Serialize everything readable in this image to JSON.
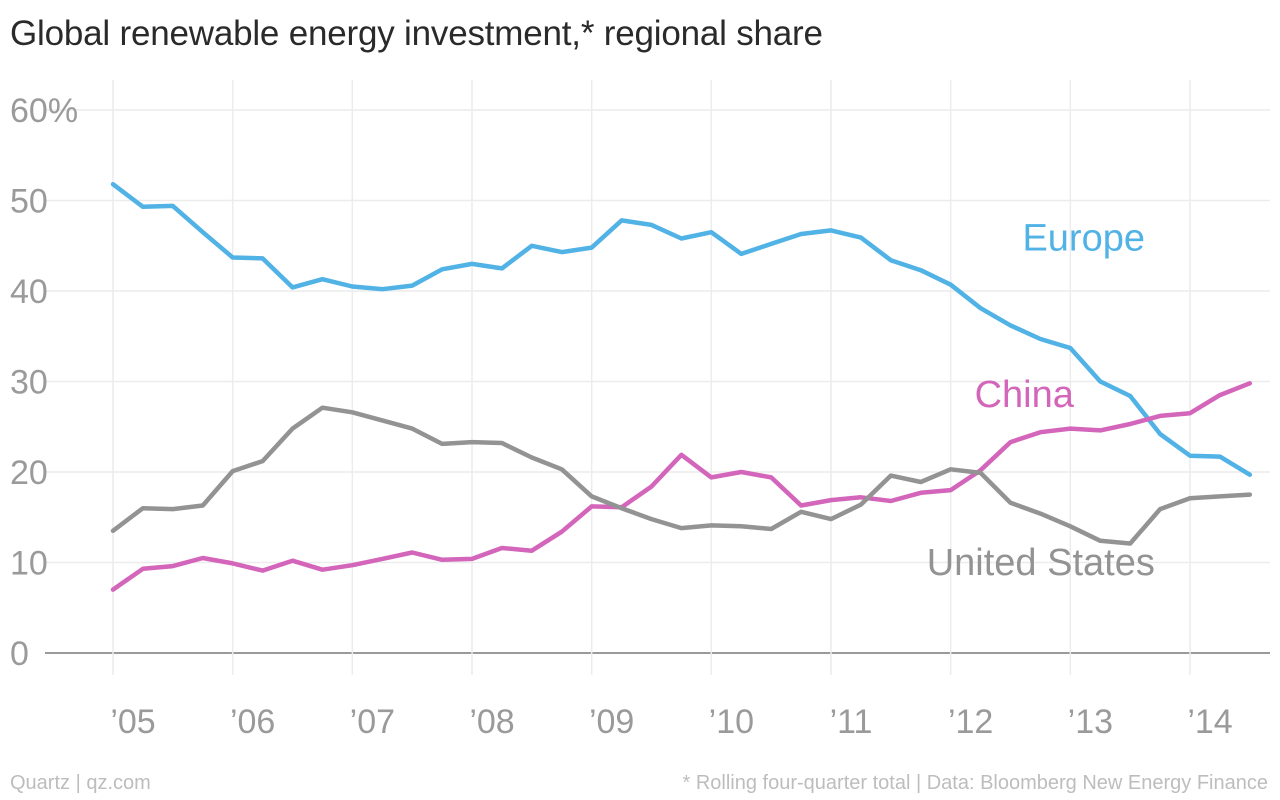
{
  "title": "Global renewable energy investment,* regional share",
  "footer": {
    "source_left": "Quartz | qz.com",
    "note_right": "* Rolling four-quarter total | Data: Bloomberg New Energy Finance"
  },
  "chart_data": {
    "type": "line",
    "title": "Global renewable energy investment,* regional share",
    "xlabel": "",
    "ylabel": "",
    "xlim": [
      2005,
      2014.5
    ],
    "ylim": [
      0,
      60
    ],
    "grid": true,
    "legend": "inline labels",
    "x_ticks": [
      {
        "value": 2005,
        "label": "’05"
      },
      {
        "value": 2006,
        "label": "’06"
      },
      {
        "value": 2007,
        "label": "’07"
      },
      {
        "value": 2008,
        "label": "’08"
      },
      {
        "value": 2009,
        "label": "’09"
      },
      {
        "value": 2010,
        "label": "’10"
      },
      {
        "value": 2011,
        "label": "’11"
      },
      {
        "value": 2012,
        "label": "’12"
      },
      {
        "value": 2013,
        "label": "’13"
      },
      {
        "value": 2014,
        "label": "’14"
      }
    ],
    "y_ticks": [
      {
        "value": 0,
        "label": "0"
      },
      {
        "value": 10,
        "label": "10"
      },
      {
        "value": 20,
        "label": "20"
      },
      {
        "value": 30,
        "label": "30"
      },
      {
        "value": 40,
        "label": "40"
      },
      {
        "value": 50,
        "label": "50"
      },
      {
        "value": 60,
        "label": "60%"
      }
    ],
    "x": [
      2005.0,
      2005.25,
      2005.5,
      2005.75,
      2006.0,
      2006.25,
      2006.5,
      2006.75,
      2007.0,
      2007.25,
      2007.5,
      2007.75,
      2008.0,
      2008.25,
      2008.5,
      2008.75,
      2009.0,
      2009.25,
      2009.5,
      2009.75,
      2010.0,
      2010.25,
      2010.5,
      2010.75,
      2011.0,
      2011.25,
      2011.5,
      2011.75,
      2012.0,
      2012.25,
      2012.5,
      2012.75,
      2013.0,
      2013.25,
      2013.5,
      2013.75,
      2014.0,
      2014.25,
      2014.5
    ],
    "series": [
      {
        "name": "Europe",
        "color": "#51b2e5",
        "values": [
          51.8,
          49.3,
          49.4,
          46.5,
          43.7,
          43.6,
          40.4,
          41.3,
          40.5,
          40.2,
          40.6,
          42.4,
          43.0,
          42.5,
          45.0,
          44.3,
          44.8,
          47.8,
          47.3,
          45.8,
          46.5,
          44.1,
          45.2,
          46.3,
          46.7,
          45.9,
          43.4,
          42.3,
          40.7,
          38.1,
          36.2,
          34.7,
          33.7,
          30.0,
          28.4,
          24.2,
          21.8,
          21.7,
          19.7
        ]
      },
      {
        "name": "China",
        "color": "#d365ba",
        "values": [
          7.0,
          9.3,
          9.6,
          10.5,
          9.9,
          9.1,
          10.2,
          9.2,
          9.7,
          10.4,
          11.1,
          10.3,
          10.4,
          11.6,
          11.3,
          13.4,
          16.2,
          16.1,
          18.4,
          21.9,
          19.4,
          20.0,
          19.4,
          16.3,
          16.9,
          17.2,
          16.8,
          17.7,
          18.0,
          20.2,
          23.3,
          24.4,
          24.8,
          24.6,
          25.3,
          26.2,
          26.5,
          28.5,
          29.8
        ]
      },
      {
        "name": "United States",
        "color": "#939393",
        "values": [
          13.5,
          16.0,
          15.9,
          16.3,
          20.1,
          21.2,
          24.8,
          27.1,
          26.6,
          25.7,
          24.8,
          23.1,
          23.3,
          23.2,
          21.6,
          20.3,
          17.3,
          16.0,
          14.8,
          13.8,
          14.1,
          14.0,
          13.7,
          15.6,
          14.8,
          16.4,
          19.6,
          18.9,
          20.3,
          19.9,
          16.6,
          15.4,
          14.0,
          12.4,
          12.1,
          15.9,
          17.1,
          17.3,
          17.5
        ]
      }
    ],
    "series_labels": [
      {
        "series": 0,
        "text": "Europe",
        "at": [
          2012.6,
          44.5
        ]
      },
      {
        "series": 1,
        "text": "China",
        "at": [
          2012.2,
          27.2
        ]
      },
      {
        "series": 2,
        "text": "United States",
        "at": [
          2011.8,
          8.6
        ]
      }
    ]
  }
}
